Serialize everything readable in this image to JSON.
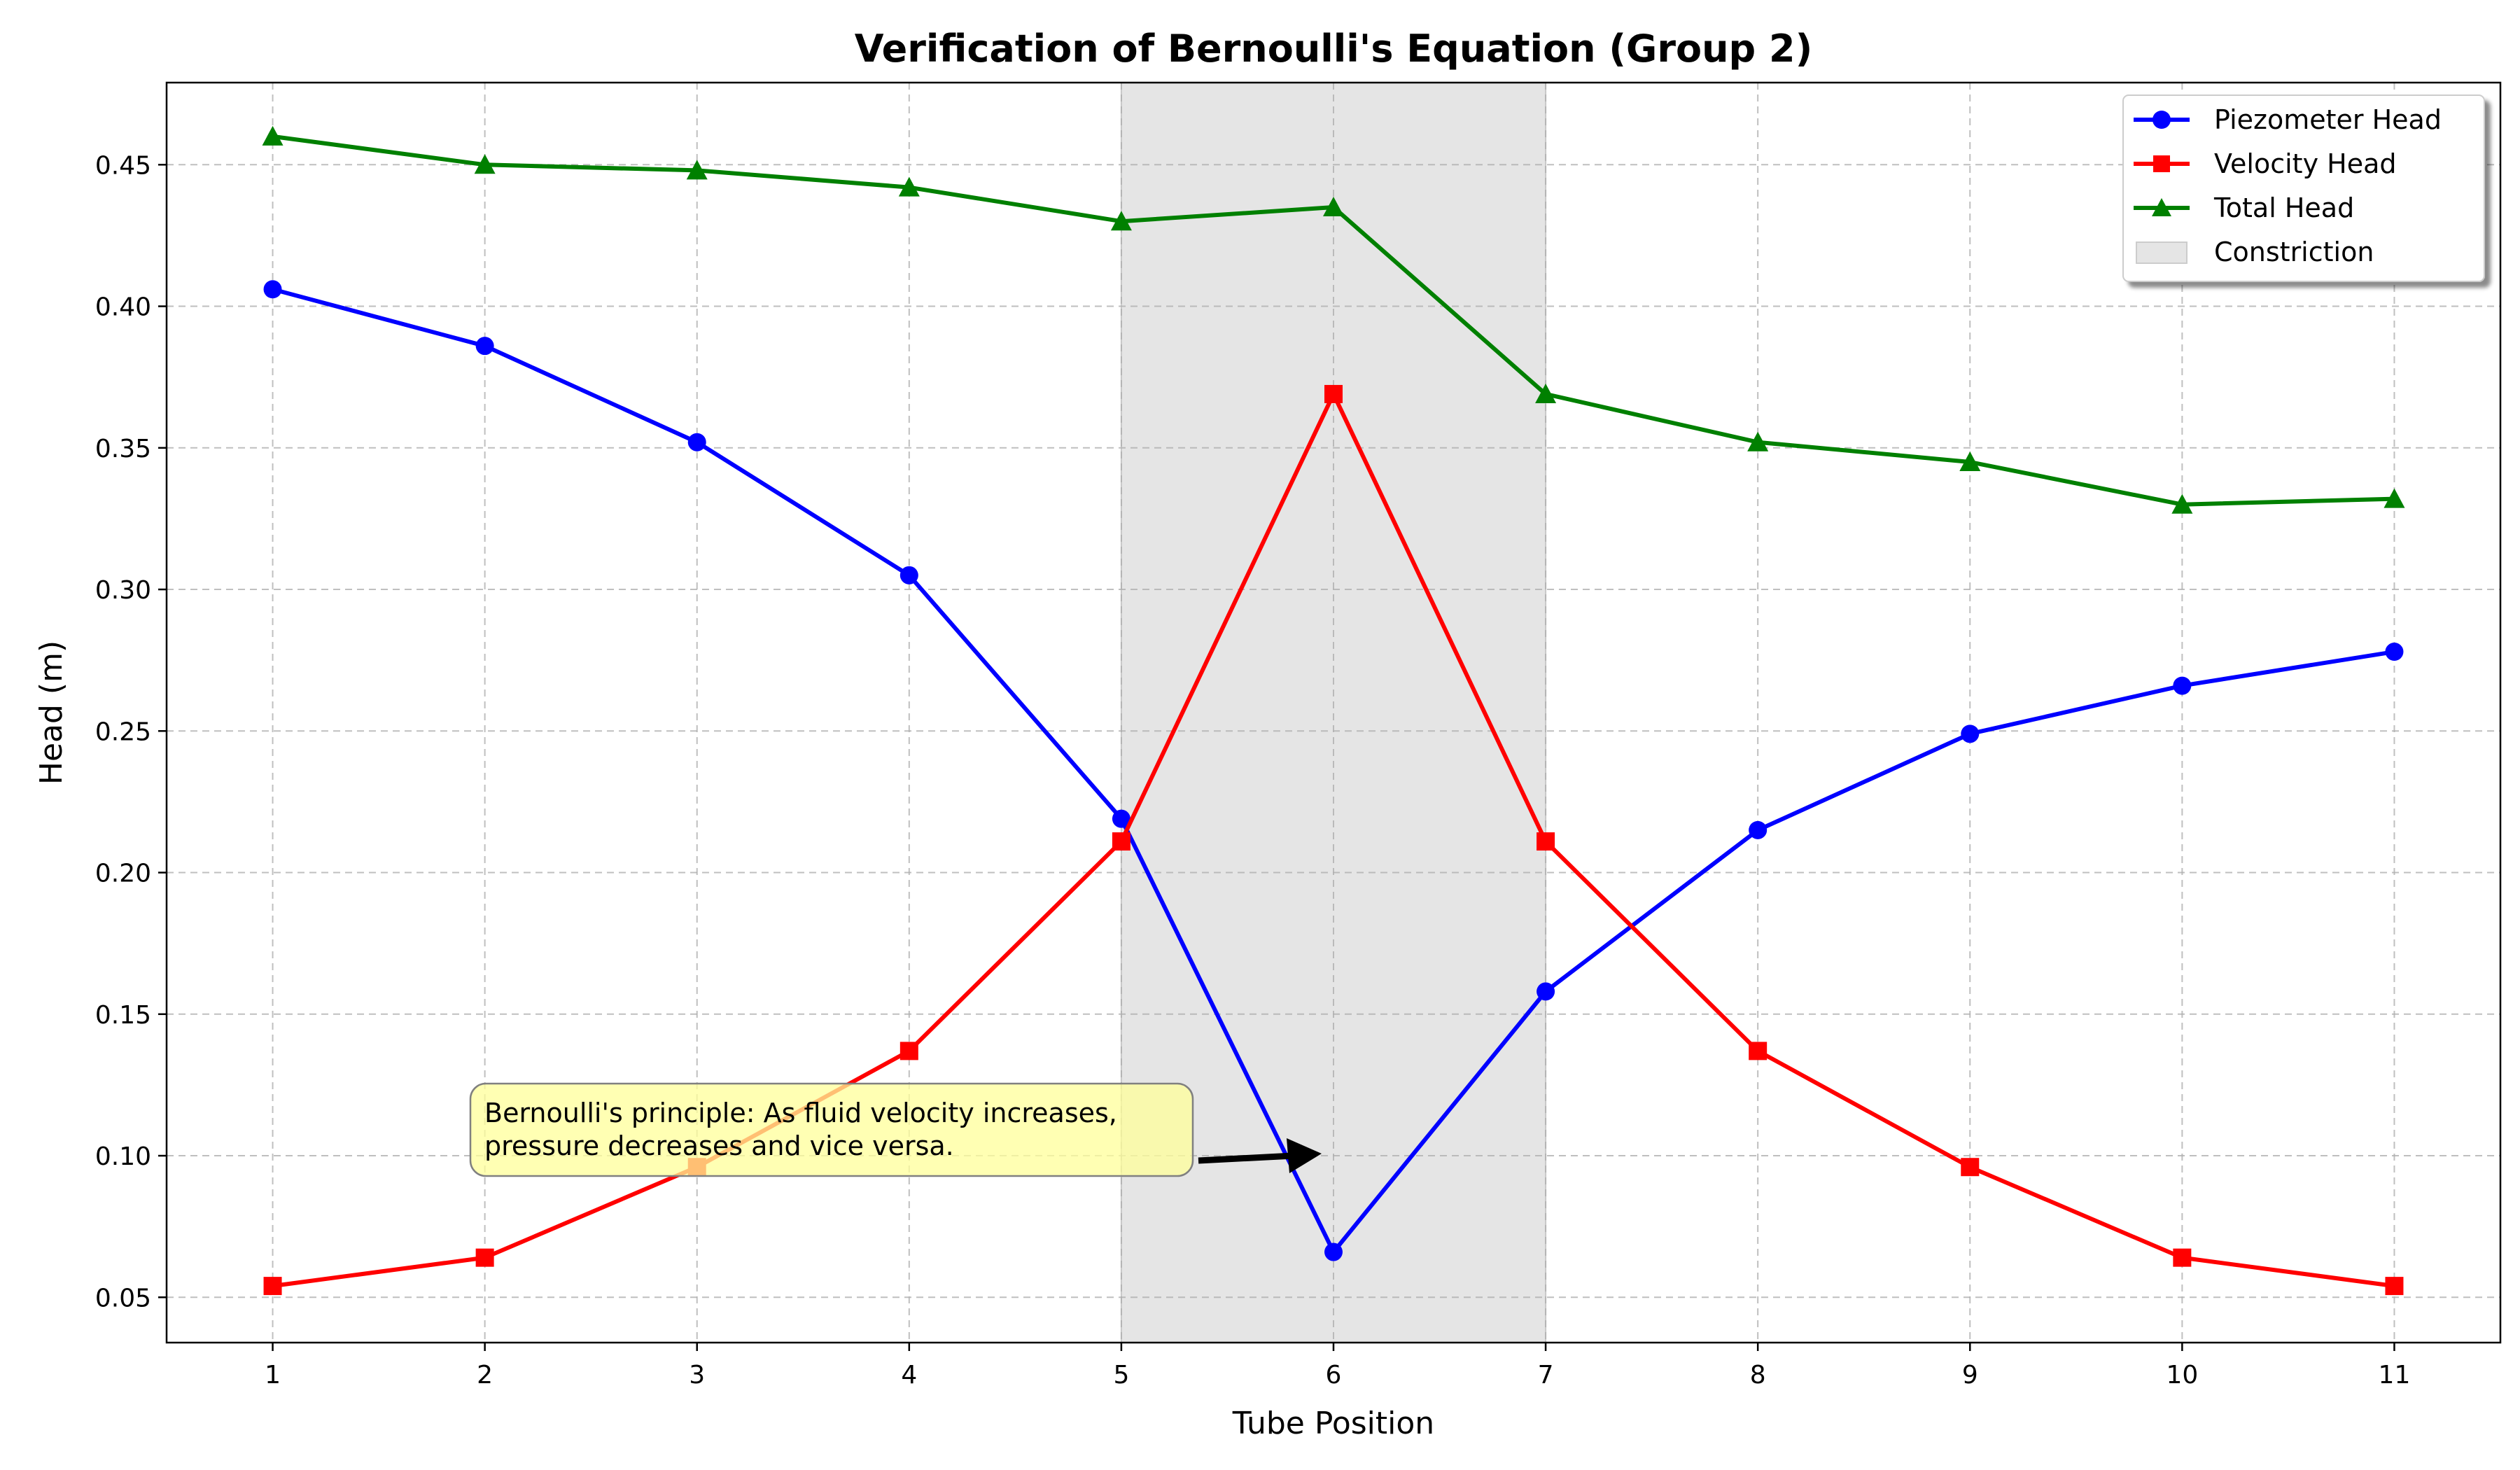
{
  "chart_data": {
    "type": "line",
    "title": "Verification of Bernoulli's Equation (Group 2)",
    "xlabel": "Tube Position",
    "ylabel": "Head (m)",
    "x": [
      1,
      2,
      3,
      4,
      5,
      6,
      7,
      8,
      9,
      10,
      11
    ],
    "xlim": [
      0.5,
      11.5
    ],
    "ylim": [
      0.034,
      0.479
    ],
    "yticks": [
      0.05,
      0.1,
      0.15,
      0.2,
      0.25,
      0.3,
      0.35,
      0.4,
      0.45
    ],
    "ytick_labels": [
      "0.05",
      "0.10",
      "0.15",
      "0.20",
      "0.25",
      "0.30",
      "0.35",
      "0.40",
      "0.45"
    ],
    "xticks": [
      1,
      2,
      3,
      4,
      5,
      6,
      7,
      8,
      9,
      10,
      11
    ],
    "xtick_labels": [
      "1",
      "2",
      "3",
      "4",
      "5",
      "6",
      "7",
      "8",
      "9",
      "10",
      "11"
    ],
    "grid": true,
    "legend_position": "top-right",
    "series": [
      {
        "name": "Piezometer Head",
        "color": "#0000ff",
        "marker": "circle",
        "values": [
          0.406,
          0.386,
          0.352,
          0.305,
          0.219,
          0.066,
          0.158,
          0.215,
          0.249,
          0.266,
          0.278
        ]
      },
      {
        "name": "Velocity Head",
        "color": "#ff0000",
        "marker": "square",
        "values": [
          0.054,
          0.064,
          0.096,
          0.137,
          0.211,
          0.369,
          0.211,
          0.137,
          0.096,
          0.064,
          0.054
        ]
      },
      {
        "name": "Total Head",
        "color": "#008000",
        "marker": "triangle",
        "values": [
          0.46,
          0.45,
          0.448,
          0.442,
          0.43,
          0.435,
          0.369,
          0.352,
          0.345,
          0.33,
          0.332
        ]
      }
    ],
    "shaded_region": {
      "name": "Constriction",
      "x_start": 5,
      "x_end": 7,
      "color": "#e5e5e5"
    },
    "annotation": {
      "lines": [
        "Bernoulli's principle: As fluid velocity increases,",
        "pressure decreases and vice versa."
      ],
      "target": [
        6,
        0.1
      ],
      "box_color": "#ffff99"
    }
  }
}
